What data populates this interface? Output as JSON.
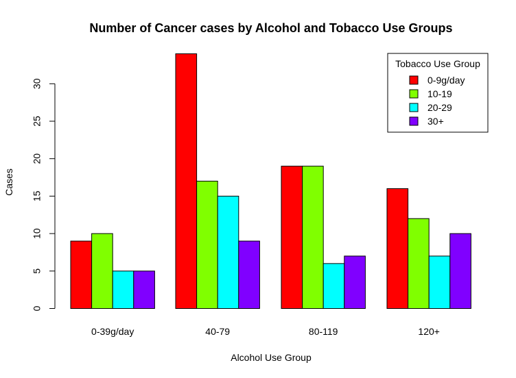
{
  "chart_data": {
    "type": "bar",
    "title": "Number of Cancer cases by Alcohol and Tobacco Use Groups",
    "xlabel": "Alcohol Use Group",
    "ylabel": "Cases",
    "categories": [
      "0-39g/day",
      "40-79",
      "80-119",
      "120+"
    ],
    "series": [
      {
        "name": "0-9g/day",
        "values": [
          9,
          34,
          19,
          16
        ],
        "color": "#ff0000"
      },
      {
        "name": "10-19",
        "values": [
          10,
          17,
          19,
          12
        ],
        "color": "#80ff00"
      },
      {
        "name": "20-29",
        "values": [
          5,
          15,
          6,
          7
        ],
        "color": "#00ffff"
      },
      {
        "name": "30+",
        "values": [
          5,
          9,
          7,
          10
        ],
        "color": "#8000ff"
      }
    ],
    "yticks": [
      0,
      5,
      10,
      15,
      20,
      25,
      30
    ],
    "ylim": [
      0,
      34
    ],
    "grid": false,
    "legend": {
      "title": "Tobacco Use Group",
      "position": "top-right"
    }
  }
}
